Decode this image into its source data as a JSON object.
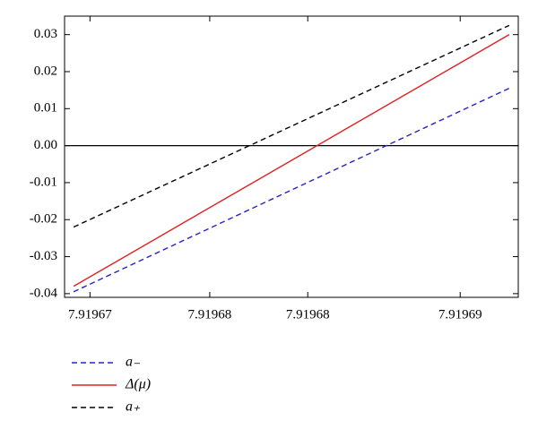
{
  "chart_data": {
    "type": "line",
    "x": [
      7.9196695,
      7.9196935
    ],
    "xlim": [
      7.919669,
      7.919694
    ],
    "xticks": [
      {
        "value": 7.9196704,
        "label": "7.91967"
      },
      {
        "value": 7.919677,
        "label": "7.91968"
      },
      {
        "value": 7.9196824,
        "label": "7.91968"
      },
      {
        "value": 7.9196908,
        "label": "7.91969"
      }
    ],
    "ylim": [
      -0.041,
      0.035
    ],
    "yticks": [
      {
        "value": -0.04,
        "label": "-0.04"
      },
      {
        "value": -0.03,
        "label": "-0.03"
      },
      {
        "value": -0.02,
        "label": "-0.02"
      },
      {
        "value": -0.01,
        "label": "-0.01"
      },
      {
        "value": 0,
        "label": "0.00"
      },
      {
        "value": 0.01,
        "label": "0.01"
      },
      {
        "value": 0.02,
        "label": "0.02"
      },
      {
        "value": 0.03,
        "label": "0.03"
      }
    ],
    "series": [
      {
        "name": "a₋",
        "color": "#2323c8",
        "dashed": true,
        "values": [
          -0.0395,
          0.0155
        ]
      },
      {
        "name": "Δ(μ)",
        "color": "#e02020",
        "dashed": false,
        "values": [
          -0.038,
          0.03
        ]
      },
      {
        "name": "a₊",
        "color": "#000000",
        "dashed": true,
        "values": [
          -0.022,
          0.0325
        ]
      }
    ],
    "legend": "bottom-left"
  }
}
